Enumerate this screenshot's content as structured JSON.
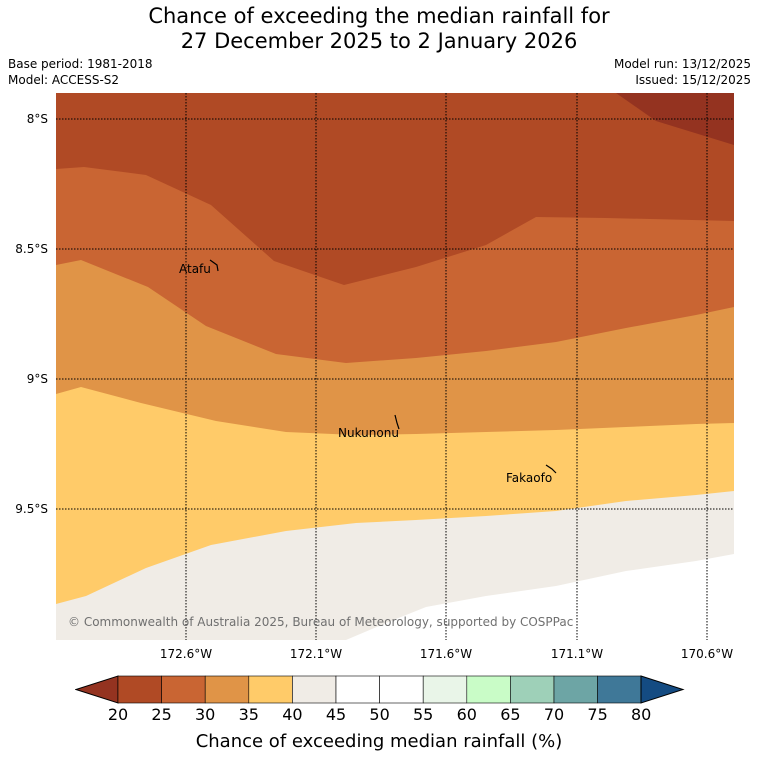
{
  "header": {
    "title_line1": "Chance of exceeding the median rainfall for",
    "title_line2": "27 December 2025 to 2 January 2026",
    "base_period": "Base period: 1981-2018",
    "model": "Model: ACCESS-S2",
    "model_run": "Model run: 13/12/2025",
    "issued": "Issued: 15/12/2025"
  },
  "map": {
    "lat_labels": [
      "8°S",
      "8.5°S",
      "9°S",
      "9.5°S"
    ],
    "lon_labels": [
      "172.6°W",
      "172.1°W",
      "171.6°W",
      "171.1°W",
      "170.6°W"
    ],
    "places": [
      "Atafu",
      "Nukunonu",
      "Fakaofo"
    ],
    "copyright": "© Commonwealth of Australia 2025, Bureau of Meteorology, supported by COSPPac",
    "band_colors": {
      "below_20": "#943320",
      "20_25": "#b04a25",
      "25_30": "#c96533",
      "30_35": "#e09447",
      "35_40": "#ffcb69",
      "40_45": "#f0ece6",
      "45_50": "#ffffff"
    }
  },
  "colorbar": {
    "ticks": [
      "20",
      "25",
      "30",
      "35",
      "40",
      "45",
      "50",
      "55",
      "60",
      "65",
      "70",
      "75",
      "80"
    ],
    "colors": [
      "#b04a25",
      "#c96533",
      "#e09447",
      "#ffcb69",
      "#f0ece6",
      "#ffffff",
      "#ffffff",
      "#e9f5e8",
      "#c9fcc7",
      "#9ed0b8",
      "#6da5a5",
      "#3f7898"
    ],
    "under_color": "#943320",
    "over_color": "#144b82",
    "label": "Chance of exceeding median rainfall (%)"
  }
}
